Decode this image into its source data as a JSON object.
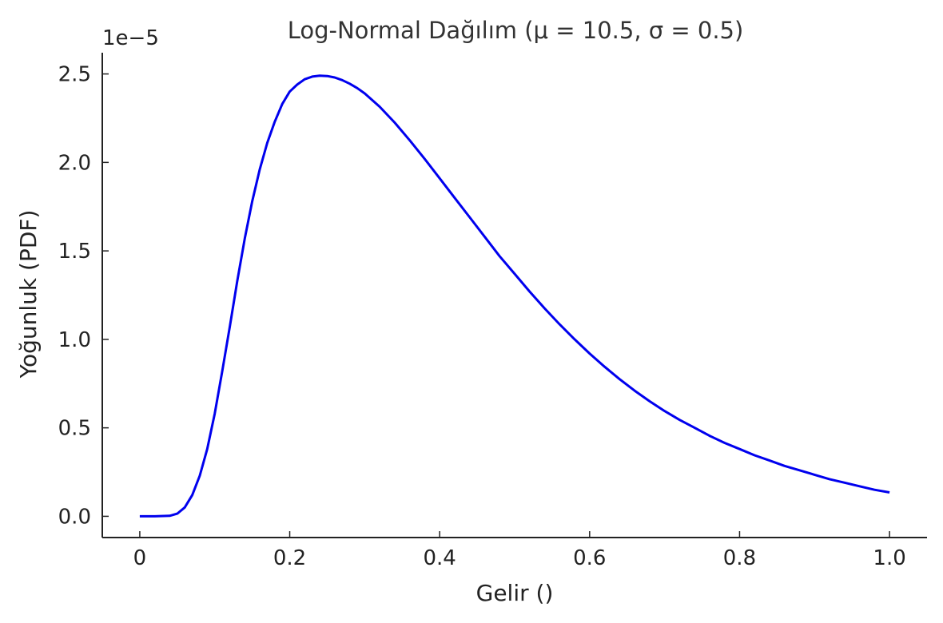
{
  "chart_data": {
    "type": "line",
    "title": "Log-Normal Dağılım (μ = 10.5,  σ = 0.5)",
    "xlabel": "Gelir ()",
    "ylabel": "Yoğunluk (PDF)",
    "y_offset_label": "1e−5",
    "xlim": [
      -0.05,
      1.05
    ],
    "ylim": [
      -0.12,
      2.62
    ],
    "x_ticks": [
      0,
      0.2,
      0.4,
      0.6,
      0.8,
      1.0
    ],
    "x_tick_labels": [
      "0",
      "0.2",
      "0.4",
      "0.6",
      "0.8",
      "1.0"
    ],
    "y_ticks": [
      0.0,
      0.5,
      1.0,
      1.5,
      2.0,
      2.5
    ],
    "y_tick_labels": [
      "0.0",
      "0.5",
      "1.0",
      "1.5",
      "2.0",
      "2.5"
    ],
    "grid": false,
    "line_color": "#0000ee",
    "series": [
      {
        "x": [
          0,
          0.02,
          0.04,
          0.05,
          0.06,
          0.07,
          0.08,
          0.09,
          0.1,
          0.11,
          0.12,
          0.13,
          0.14,
          0.15,
          0.16,
          0.17,
          0.18,
          0.19,
          0.2,
          0.21,
          0.22,
          0.23,
          0.24,
          0.25,
          0.26,
          0.27,
          0.28,
          0.29,
          0.3,
          0.32,
          0.34,
          0.36,
          0.38,
          0.4,
          0.42,
          0.44,
          0.46,
          0.48,
          0.5,
          0.52,
          0.54,
          0.56,
          0.58,
          0.6,
          0.62,
          0.64,
          0.66,
          0.68,
          0.7,
          0.72,
          0.74,
          0.76,
          0.78,
          0.8,
          0.82,
          0.84,
          0.86,
          0.88,
          0.9,
          0.92,
          0.94,
          0.96,
          0.98,
          1.0
        ],
        "values": [
          0.0,
          0.0,
          0.003,
          0.015,
          0.05,
          0.12,
          0.23,
          0.38,
          0.58,
          0.82,
          1.07,
          1.33,
          1.57,
          1.78,
          1.96,
          2.11,
          2.23,
          2.33,
          2.4,
          2.44,
          2.47,
          2.485,
          2.49,
          2.488,
          2.48,
          2.465,
          2.445,
          2.42,
          2.39,
          2.315,
          2.225,
          2.125,
          2.02,
          1.91,
          1.8,
          1.69,
          1.58,
          1.47,
          1.37,
          1.27,
          1.175,
          1.085,
          1.0,
          0.92,
          0.845,
          0.775,
          0.71,
          0.65,
          0.595,
          0.545,
          0.5,
          0.455,
          0.415,
          0.38,
          0.345,
          0.315,
          0.285,
          0.26,
          0.235,
          0.21,
          0.19,
          0.17,
          0.15,
          0.135
        ]
      }
    ]
  }
}
